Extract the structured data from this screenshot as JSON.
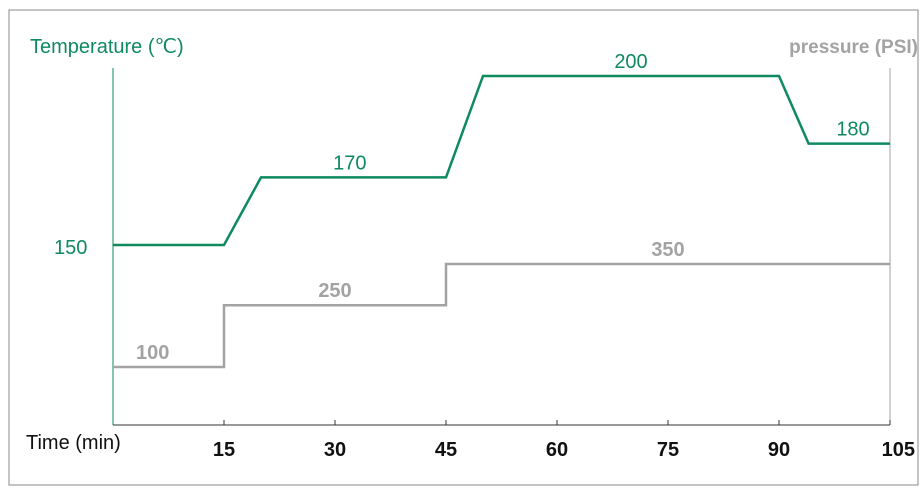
{
  "colors": {
    "temperature": "#0f8a5f",
    "pressure": "#a3a3a3",
    "axis_text": "#111111",
    "frame": "#8a8a8a"
  },
  "chart_data": {
    "type": "line",
    "left_axis_label": "Temperature (℃)",
    "right_axis_label": "pressure (PSI)",
    "xlabel": "Time (min)",
    "x_ticks": [
      15,
      30,
      45,
      60,
      75,
      90,
      105
    ],
    "xlim": [
      0,
      105
    ],
    "grid": false,
    "series": [
      {
        "name": "Temperature (℃)",
        "axis": "left",
        "points": [
          [
            0,
            150
          ],
          [
            15,
            150
          ],
          [
            20,
            170
          ],
          [
            45,
            170
          ],
          [
            50,
            200
          ],
          [
            90,
            200
          ],
          [
            94,
            180
          ],
          [
            105,
            180
          ]
        ],
        "labels": [
          {
            "text": "150",
            "x": 0,
            "y": 150
          },
          {
            "text": "170",
            "x": 32,
            "y": 170
          },
          {
            "text": "200",
            "x": 70,
            "y": 200
          },
          {
            "text": "180",
            "x": 100,
            "y": 180
          }
        ]
      },
      {
        "name": "pressure (PSI)",
        "axis": "right",
        "points": [
          [
            0,
            100
          ],
          [
            15,
            100
          ],
          [
            15,
            250
          ],
          [
            45,
            250
          ],
          [
            45,
            350
          ],
          [
            105,
            350
          ]
        ],
        "labels": [
          {
            "text": "100",
            "x": 6,
            "y": 100
          },
          {
            "text": "250",
            "x": 30,
            "y": 250
          },
          {
            "text": "350",
            "x": 75,
            "y": 350
          }
        ]
      }
    ]
  }
}
